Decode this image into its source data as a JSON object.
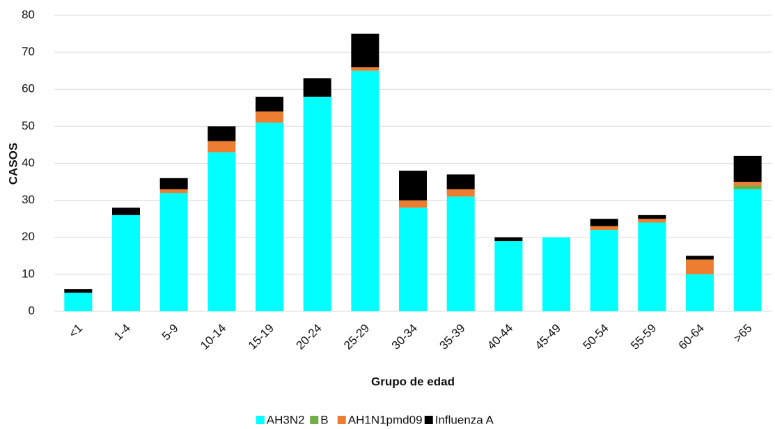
{
  "chart_data": {
    "type": "stacked_bar",
    "xlabel": "Grupo de edad",
    "ylabel": "CASOS",
    "categories": [
      "<1",
      "1-4",
      "5-9",
      "10-14",
      "15-19",
      "20-24",
      "25-29",
      "30-34",
      "35-39",
      "40-44",
      "45-49",
      "50-54",
      "55-59",
      "60-64",
      ">65"
    ],
    "series": [
      {
        "name": "AH3N2",
        "color": "#00ffff",
        "values": [
          5,
          26,
          32,
          43,
          51,
          58,
          65,
          28,
          31,
          19,
          20,
          22,
          24,
          10,
          33
        ]
      },
      {
        "name": "B",
        "color": "#70ad47",
        "values": [
          0,
          0,
          0,
          0,
          0,
          0,
          0,
          0,
          0,
          0,
          0,
          0,
          0,
          0,
          1
        ]
      },
      {
        "name": "AH1N1pmd09",
        "color": "#ed7d31",
        "values": [
          0,
          0,
          1,
          3,
          3,
          0,
          1,
          2,
          2,
          0,
          0,
          1,
          1,
          4,
          1
        ]
      },
      {
        "name": "Influenza A",
        "color": "#000000",
        "values": [
          1,
          2,
          3,
          4,
          4,
          5,
          9,
          8,
          4,
          1,
          0,
          2,
          1,
          1,
          7
        ]
      }
    ],
    "ylim": [
      0,
      80
    ],
    "yticks": [
      0,
      10,
      20,
      30,
      40,
      50,
      60,
      70,
      80
    ],
    "grid": true
  }
}
